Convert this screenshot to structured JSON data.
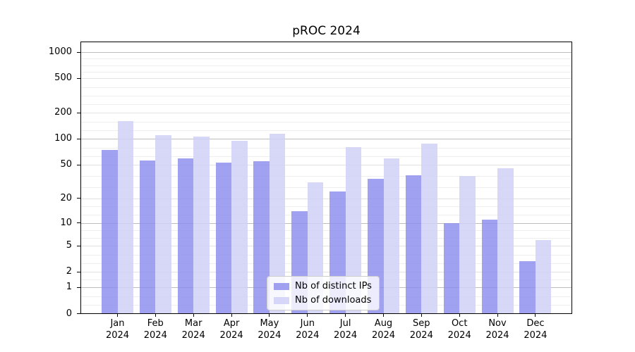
{
  "title": "pROC 2024",
  "chart_data": {
    "type": "bar",
    "title": "pROC 2024",
    "categories": [
      "Jan 2024",
      "Feb 2024",
      "Mar 2024",
      "Apr 2024",
      "May 2024",
      "Jun 2024",
      "Jul 2024",
      "Aug 2024",
      "Sep 2024",
      "Oct 2024",
      "Nov 2024",
      "Dec 2024"
    ],
    "x_tick_months": [
      "Jan",
      "Feb",
      "Mar",
      "Apr",
      "May",
      "Jun",
      "Jul",
      "Aug",
      "Sep",
      "Oct",
      "Nov",
      "Dec"
    ],
    "x_tick_year": "2024",
    "series": [
      {
        "name": "Nb of distinct IPs",
        "color": "#8c8cee",
        "fill_alpha": 0.82,
        "values": [
          74,
          56,
          59,
          53,
          55,
          14,
          24,
          34,
          38,
          10,
          11,
          3
        ]
      },
      {
        "name": "Nb of downloads",
        "color": "#d0d0f7",
        "fill_alpha": 0.85,
        "values": [
          160,
          111,
          107,
          95,
          116,
          31,
          80,
          60,
          88,
          37,
          46,
          6
        ]
      }
    ],
    "y_scale": "log10(1+v)",
    "y_ticks": [
      0,
      1,
      2,
      5,
      10,
      20,
      50,
      100,
      200,
      500,
      1000
    ],
    "ylim": [
      0,
      1300
    ],
    "xlabel": "",
    "ylabel": "",
    "grid": "major and minor horizontal gridlines",
    "legend_position": "lower center"
  }
}
